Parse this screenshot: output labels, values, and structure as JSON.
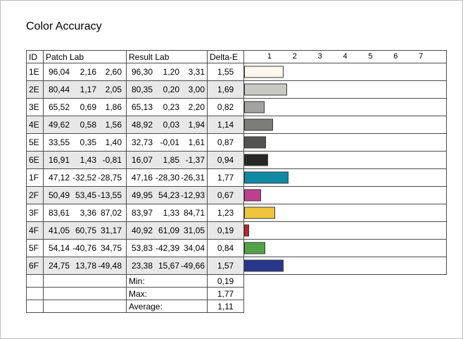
{
  "title": "Color Accuracy",
  "table": {
    "headers": {
      "id": "ID",
      "patch": "Patch Lab",
      "result": "Result Lab",
      "delta": "Delta-E"
    },
    "rows": [
      {
        "id": "1E",
        "patch": [
          "96,04",
          "2,16",
          "2,60"
        ],
        "result": [
          "96,30",
          "1,20",
          "3,31"
        ],
        "delta": "1,55",
        "delta_value": 1.55,
        "color": "#fcf8ef"
      },
      {
        "id": "2E",
        "patch": [
          "80,44",
          "1,17",
          "2,05"
        ],
        "result": [
          "80,35",
          "0,20",
          "3,00"
        ],
        "delta": "1,69",
        "delta_value": 1.69,
        "color": "#c9c9c4"
      },
      {
        "id": "3E",
        "patch": [
          "65,52",
          "0,69",
          "1,86"
        ],
        "result": [
          "65,13",
          "0,23",
          "2,20"
        ],
        "delta": "0,82",
        "delta_value": 0.82,
        "color": "#a2a29e"
      },
      {
        "id": "4E",
        "patch": [
          "49,62",
          "0,58",
          "1,56"
        ],
        "result": [
          "48,92",
          "0,03",
          "1,94"
        ],
        "delta": "1,14",
        "delta_value": 1.14,
        "color": "#7c7c78"
      },
      {
        "id": "5E",
        "patch": [
          "33,55",
          "0,35",
          "1,40"
        ],
        "result": [
          "32,73",
          "-0,01",
          "1,61"
        ],
        "delta": "0,87",
        "delta_value": 0.87,
        "color": "#53534f"
      },
      {
        "id": "6E",
        "patch": [
          "16,91",
          "1,43",
          "-0,81"
        ],
        "result": [
          "16,07",
          "1,85",
          "-1,37"
        ],
        "delta": "0,94",
        "delta_value": 0.94,
        "color": "#272725"
      },
      {
        "id": "1F",
        "patch": [
          "47,12",
          "-32,52",
          "-28,75"
        ],
        "result": [
          "47,16",
          "-28,30",
          "-26,31"
        ],
        "delta": "1,77",
        "delta_value": 1.77,
        "color": "#0f8aa5"
      },
      {
        "id": "2F",
        "patch": [
          "50,49",
          "53,45",
          "-13,55"
        ],
        "result": [
          "49,95",
          "54,23",
          "-12,93"
        ],
        "delta": "0,67",
        "delta_value": 0.67,
        "color": "#bf3e8d"
      },
      {
        "id": "3F",
        "patch": [
          "83,61",
          "3,36",
          "87,02"
        ],
        "result": [
          "83,97",
          "1,33",
          "84,71"
        ],
        "delta": "1,23",
        "delta_value": 1.23,
        "color": "#eec63e"
      },
      {
        "id": "4F",
        "patch": [
          "41,05",
          "60,75",
          "31,17"
        ],
        "result": [
          "40,92",
          "61,09",
          "31,05"
        ],
        "delta": "0,19",
        "delta_value": 0.19,
        "color": "#c4202c"
      },
      {
        "id": "5F",
        "patch": [
          "54,14",
          "-40,76",
          "34,75"
        ],
        "result": [
          "53,83",
          "-42,39",
          "34,04"
        ],
        "delta": "0,84",
        "delta_value": 0.84,
        "color": "#53a346"
      },
      {
        "id": "6F",
        "patch": [
          "24,75",
          "13,78",
          "-49,48"
        ],
        "result": [
          "23,38",
          "15,67",
          "-49,66"
        ],
        "delta": "1,57",
        "delta_value": 1.57,
        "color": "#27368c"
      }
    ],
    "summary": [
      {
        "label": "Min:",
        "value": "0,19"
      },
      {
        "label": "Max:",
        "value": "1,77"
      },
      {
        "label": "Average:",
        "value": "1,11"
      }
    ]
  },
  "chart": {
    "ticks": [
      "1",
      "2",
      "3",
      "4",
      "5",
      "6",
      "7"
    ],
    "max": 8
  },
  "chart_data": {
    "type": "bar",
    "orientation": "horizontal",
    "title": "Color Accuracy",
    "categories": [
      "1E",
      "2E",
      "3E",
      "4E",
      "5E",
      "6E",
      "1F",
      "2F",
      "3F",
      "4F",
      "5F",
      "6F"
    ],
    "values": [
      1.55,
      1.69,
      0.82,
      1.14,
      0.87,
      0.94,
      1.77,
      0.67,
      1.23,
      0.19,
      0.84,
      1.57
    ],
    "bar_colors": [
      "#fcf8ef",
      "#c9c9c4",
      "#a2a29e",
      "#7c7c78",
      "#53534f",
      "#272725",
      "#0f8aa5",
      "#bf3e8d",
      "#eec63e",
      "#c4202c",
      "#53a346",
      "#27368c"
    ],
    "xlabel": "Delta-E",
    "xlim": [
      0,
      8
    ],
    "x_ticks": [
      1,
      2,
      3,
      4,
      5,
      6,
      7
    ],
    "grid": true,
    "legend": false,
    "summary": {
      "min": 0.19,
      "max": 1.77,
      "average": 1.11
    }
  }
}
